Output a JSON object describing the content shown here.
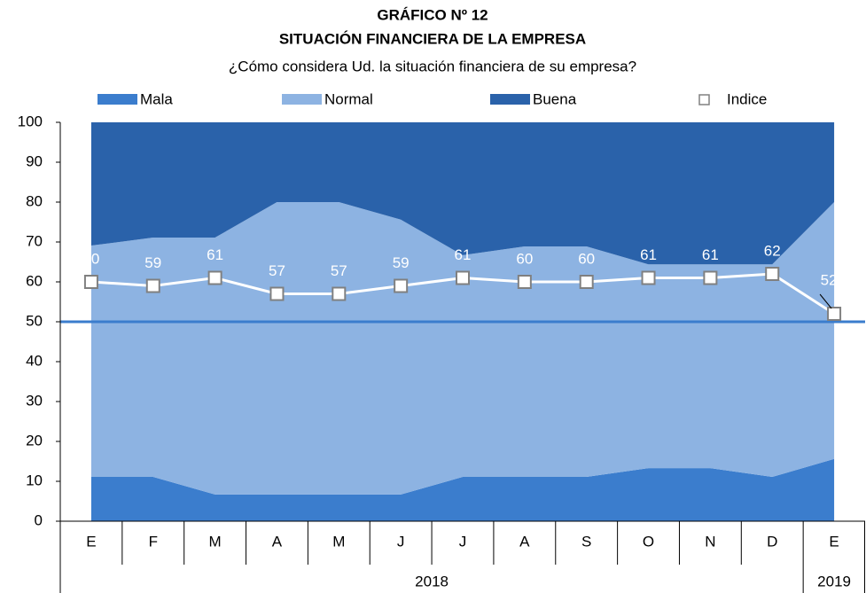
{
  "chart_data": {
    "type": "stacked_area",
    "title": "GRÁFICO Nº 12",
    "subtitle": "SITUACIÓN FINANCIERA DE LA EMPRESA",
    "question": "¿Cómo considera Ud. la situación financiera de su empresa?",
    "categories": [
      "E",
      "F",
      "M",
      "A",
      "M",
      "J",
      "J",
      "A",
      "S",
      "O",
      "N",
      "D",
      "E"
    ],
    "groups": [
      {
        "label": "2018",
        "span": 12
      },
      {
        "label": "2019",
        "span": 1
      }
    ],
    "series": [
      {
        "name": "Mala",
        "color": "#3b7dcd",
        "values": [
          11.1,
          11.1,
          6.7,
          6.7,
          6.7,
          6.7,
          11.1,
          11.1,
          11.1,
          13.3,
          13.3,
          11.1,
          15.6
        ]
      },
      {
        "name": "Normal",
        "color": "#8db3e2",
        "values": [
          58.0,
          60.0,
          64.4,
          73.3,
          73.3,
          68.9,
          55.6,
          57.8,
          57.8,
          51.1,
          51.1,
          53.3,
          64.4
        ]
      },
      {
        "name": "Buena",
        "color": "#2a62aa",
        "values": [
          30.9,
          28.9,
          28.9,
          20.0,
          20.0,
          24.4,
          33.3,
          31.1,
          31.1,
          35.6,
          35.6,
          35.6,
          20.0
        ]
      }
    ],
    "index": {
      "name": "Indice",
      "type": "line",
      "color": "#ffffff",
      "marker_color": "#808080",
      "values": [
        60,
        59,
        61,
        57,
        57,
        59,
        61,
        60,
        60,
        61,
        61,
        62,
        52
      ]
    },
    "reference_line": 50,
    "reference_color": "#3b7dcd",
    "ylim": [
      0,
      100
    ],
    "yticks": [
      0,
      10,
      20,
      30,
      40,
      50,
      60,
      70,
      80,
      90,
      100
    ]
  }
}
